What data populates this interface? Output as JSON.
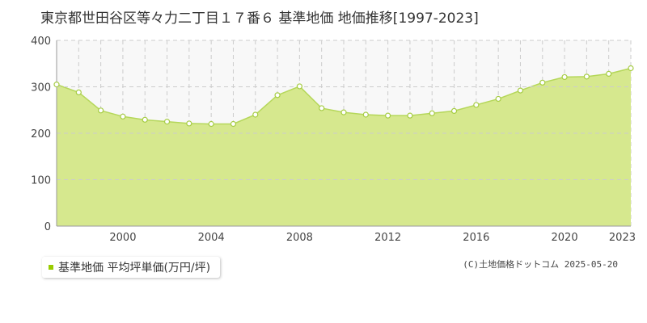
{
  "chart_data": {
    "type": "area",
    "title": "東京都世田谷区等々力二丁目１７番６ 基準地価 地価推移[1997-2023]",
    "xlabel": "",
    "ylabel": "",
    "x": [
      1997,
      1998,
      1999,
      2000,
      2001,
      2002,
      2003,
      2004,
      2005,
      2006,
      2007,
      2008,
      2009,
      2010,
      2011,
      2012,
      2013,
      2014,
      2015,
      2016,
      2017,
      2018,
      2019,
      2020,
      2021,
      2022,
      2023
    ],
    "xlim": [
      1997,
      2023
    ],
    "ylim": [
      0,
      400
    ],
    "x_ticks": [
      2000,
      2004,
      2008,
      2012,
      2016,
      2020,
      2023
    ],
    "y_ticks": [
      0,
      100,
      200,
      300,
      400
    ],
    "grid": true,
    "legend_position": "bottom-left",
    "series": [
      {
        "name": "基準地価 平均坪単価(万円/坪)",
        "values": [
          305,
          288,
          249,
          236,
          229,
          225,
          221,
          220,
          220,
          240,
          282,
          301,
          254,
          245,
          240,
          238,
          238,
          243,
          248,
          261,
          274,
          292,
          309,
          321,
          322,
          328,
          340
        ],
        "color": "#99cc00"
      }
    ],
    "colors": {
      "fill": "#d6e88e",
      "line": "#b5d75a",
      "marker_stroke": "#a6cc44",
      "plot_background": "#f8f8f8",
      "grid": "#cccccc",
      "legend_marker": "#99cc00"
    }
  },
  "credit": "(C)土地価格ドットコム 2025-05-20"
}
